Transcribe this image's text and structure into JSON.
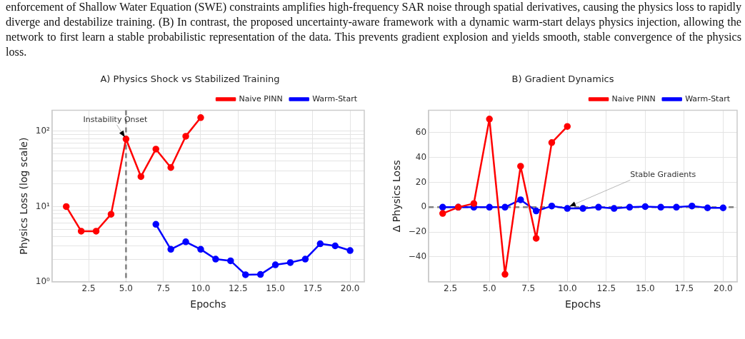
{
  "chart_data": [
    {
      "type": "line",
      "title": "A) Physics Shock vs Stabilized Training",
      "xlabel": "Epochs",
      "ylabel": "Physics Loss (log scale)",
      "log": "y",
      "grid": true,
      "legend": "top right",
      "marker": "circle",
      "xlim": [
        0.05,
        20.95
      ],
      "xticks": [
        {
          "value": 2.5,
          "label": "2.5"
        },
        {
          "value": 5,
          "label": "5.0"
        },
        {
          "value": 7.5,
          "label": "7.5"
        },
        {
          "value": 10,
          "label": "10.0"
        },
        {
          "value": 12.5,
          "label": "12.5"
        },
        {
          "value": 15,
          "label": "15.0"
        },
        {
          "value": 17.5,
          "label": "17.5"
        },
        {
          "value": 20,
          "label": "20.0"
        }
      ],
      "ylim": [
        1,
        190
      ],
      "yticks": [
        {
          "value": 1,
          "label": "10⁰"
        },
        {
          "value": 2,
          "label": null
        },
        {
          "value": 3,
          "label": null
        },
        {
          "value": 4,
          "label": null
        },
        {
          "value": 5,
          "label": null
        },
        {
          "value": 6,
          "label": null
        },
        {
          "value": 7,
          "label": null
        },
        {
          "value": 8,
          "label": null
        },
        {
          "value": 9,
          "label": null
        },
        {
          "value": 10,
          "label": "10¹"
        },
        {
          "value": 20,
          "label": null
        },
        {
          "value": 30,
          "label": null
        },
        {
          "value": 40,
          "label": null
        },
        {
          "value": 50,
          "label": null
        },
        {
          "value": 60,
          "label": null
        },
        {
          "value": 70,
          "label": null
        },
        {
          "value": 80,
          "label": null
        },
        {
          "value": 90,
          "label": null
        },
        {
          "value": 100,
          "label": "10²"
        }
      ],
      "series": [
        {
          "name": "Naive PINN",
          "color": "#ff0000",
          "x": [
            1,
            2,
            3,
            4,
            5,
            6,
            7,
            8,
            9,
            10
          ],
          "values": [
            10,
            4.7,
            4.7,
            7.9,
            79,
            25,
            58,
            33,
            86,
            152
          ]
        },
        {
          "name": "Warm-Start",
          "color": "#0000ff",
          "x": [
            7,
            8,
            9,
            10,
            11,
            12,
            13,
            14,
            15,
            16,
            17,
            18,
            19,
            20
          ],
          "values": [
            5.8,
            2.7,
            3.4,
            2.7,
            2.0,
            1.9,
            1.24,
            1.25,
            1.68,
            1.8,
            2.0,
            3.2,
            3.0,
            2.6
          ]
        }
      ],
      "ref_lines": [
        {
          "axis": "x",
          "value": 5,
          "color": "#808080",
          "line_style": "dashed"
        }
      ],
      "annotations": [
        "enforcement of Shallow Water Equation (SWE) constraints amplifies high-frequency SAR noise through spatial derivatives, causing the physics loss to rapidly diverge and destabilize training. (B) In contrast, the proposed uncertainty-aware framework with a dynamic warm-start delays physics injection, allowing the network to first learn a stable probabilistic representation of the data. This prevents gradient explosion and yields smooth, stable convergence of the physics loss.",
        {
          "text": "Instability Onset",
          "x": 5,
          "y": 79
        }
      ]
    },
    {
      "type": "line",
      "title": "B) Gradient Dynamics",
      "xlabel": "Epochs",
      "ylabel": "Δ Physics Loss",
      "grid": true,
      "legend": "top right",
      "marker": "circle",
      "xlim": [
        1.1,
        20.9
      ],
      "xticks": [
        {
          "value": 2.5,
          "label": "2.5"
        },
        {
          "value": 5,
          "label": "5.0"
        },
        {
          "value": 7.5,
          "label": "7.5"
        },
        {
          "value": 10,
          "label": "10.0"
        },
        {
          "value": 12.5,
          "label": "12.5"
        },
        {
          "value": 15,
          "label": "15.0"
        },
        {
          "value": 17.5,
          "label": "17.5"
        },
        {
          "value": 20,
          "label": "20.0"
        }
      ],
      "ylim": [
        -60,
        78
      ],
      "yticks": [
        {
          "value": -40,
          "label": "−40"
        },
        {
          "value": -20,
          "label": "−20"
        },
        0,
        20,
        40,
        60
      ],
      "series": [
        {
          "name": "Naive PINN",
          "color": "#ff0000",
          "x": [
            2,
            3,
            4,
            5,
            6,
            7,
            8,
            9,
            10
          ],
          "values": [
            -5,
            0,
            3,
            71,
            -54,
            33,
            -25,
            52,
            65
          ]
        },
        {
          "name": "Warm-Start",
          "color": "#0000ff",
          "x": [
            2,
            3,
            4,
            5,
            6,
            7,
            8,
            9,
            10,
            11,
            12,
            13,
            14,
            15,
            16,
            17,
            18,
            19,
            20
          ],
          "values": [
            0,
            0,
            0,
            0,
            0,
            6,
            -3,
            1,
            -1,
            -1,
            0,
            -1,
            0,
            0.5,
            0,
            0,
            1,
            -0.5,
            -0.5
          ]
        }
      ],
      "ref_lines": [
        {
          "axis": "y",
          "value": 0,
          "color": "#808080",
          "line_style": "dashed"
        }
      ],
      "annotations": [
        {
          "text": "Stable Gradients",
          "x": 10,
          "y": 0
        }
      ]
    }
  ]
}
